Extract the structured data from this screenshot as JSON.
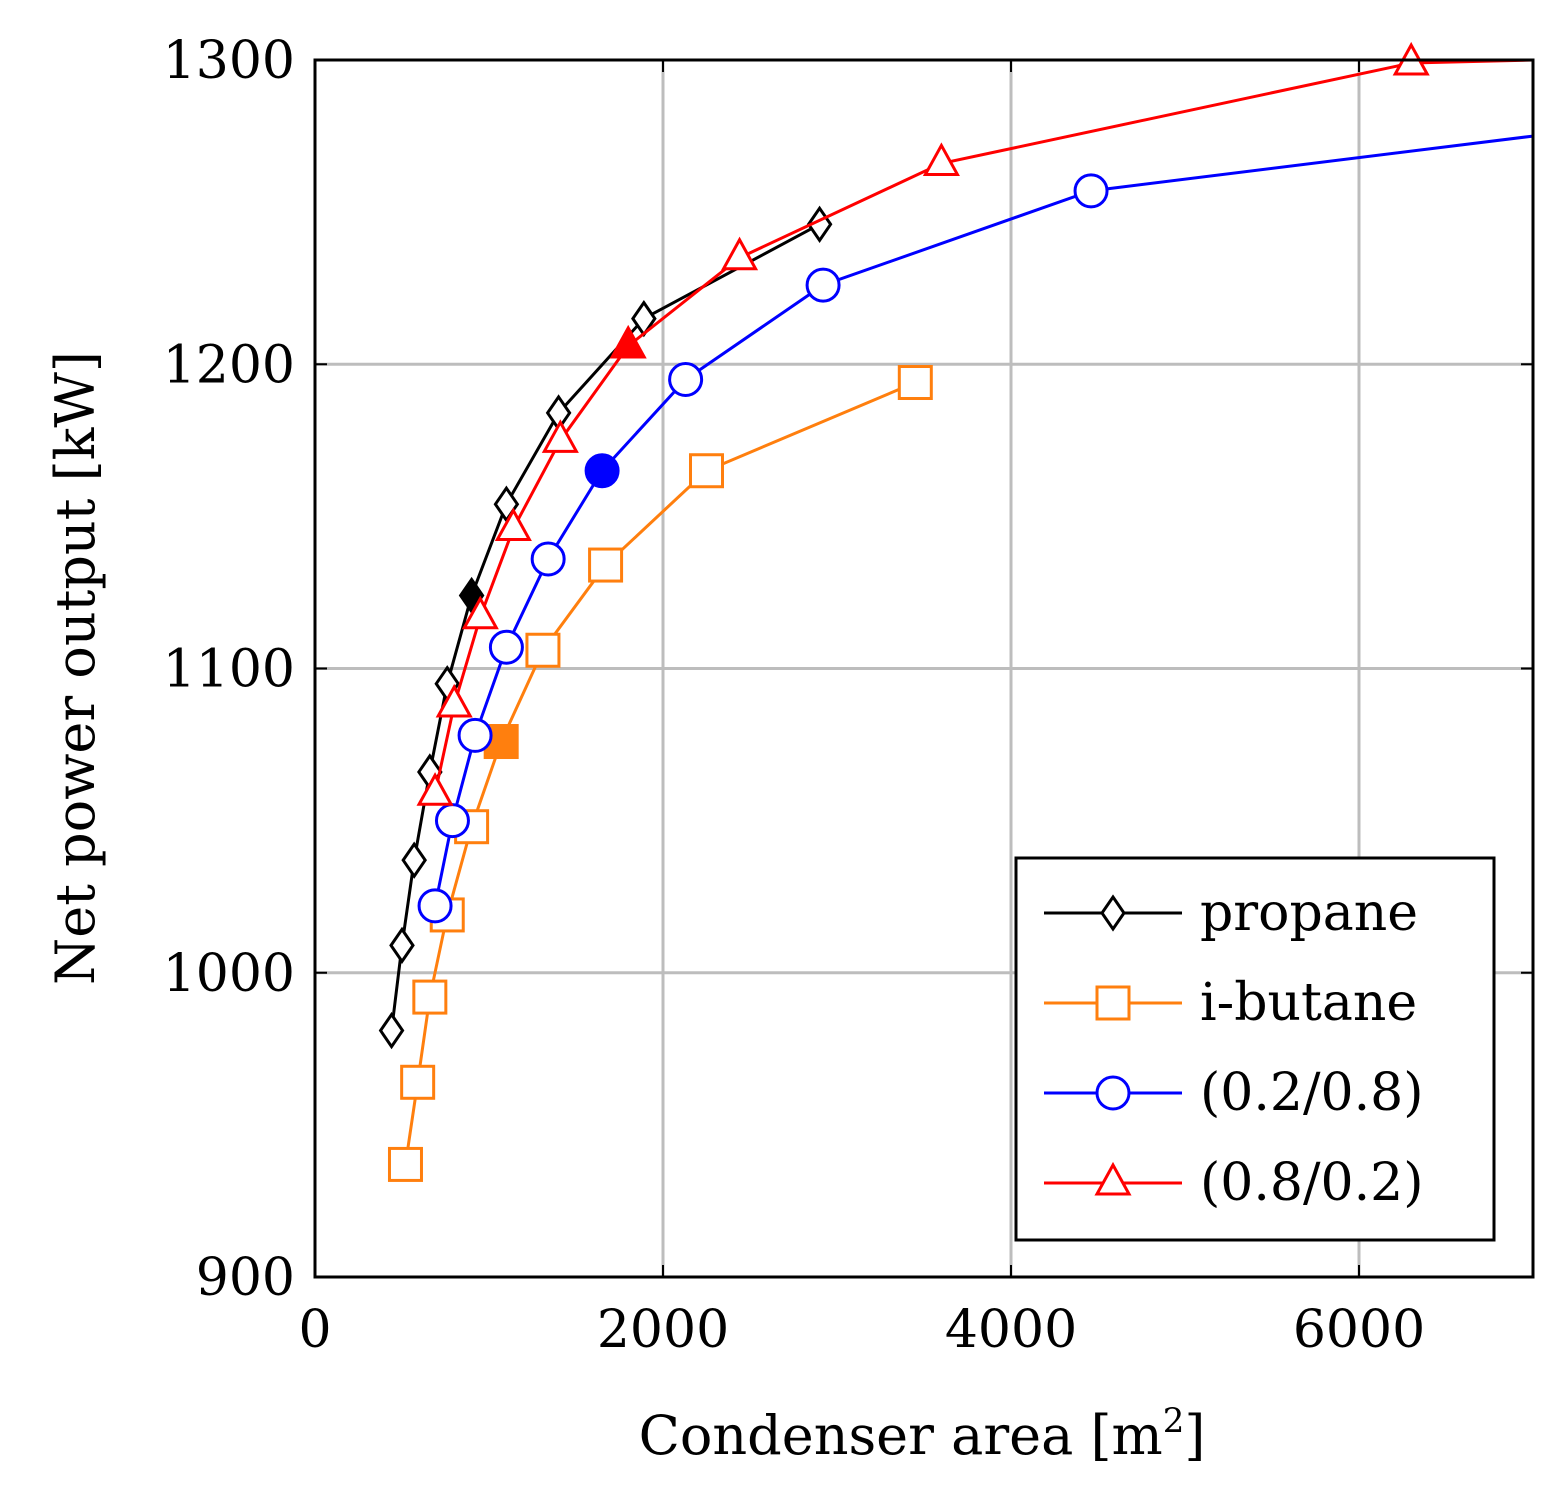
{
  "chart_data": {
    "type": "line",
    "xlabel": "Condenser area [m",
    "xlabel_sup": "2",
    "xlabel_end": "]",
    "ylabel": "Net power output [kW]",
    "xlim": [
      0,
      7000
    ],
    "ylim": [
      900,
      1300
    ],
    "xticks": [
      0,
      2000,
      4000,
      6000
    ],
    "yticks": [
      900,
      1000,
      1100,
      1200,
      1300
    ],
    "grid": true,
    "legend_position": "bottom-right",
    "series": [
      {
        "name": "propane",
        "color": "#000000",
        "marker": "diamond",
        "x": [
          440,
          500,
          570,
          660,
          760,
          900,
          1100,
          1400,
          1890,
          2900
        ],
        "y": [
          981,
          1009,
          1037,
          1066,
          1095,
          1124,
          1154,
          1184,
          1215,
          1246
        ],
        "highlight_index": 5
      },
      {
        "name": "i-butane",
        "color": "#ff7f0e",
        "marker": "square",
        "x": [
          520,
          590,
          660,
          760,
          900,
          1070,
          1310,
          1670,
          2250,
          3450
        ],
        "y": [
          937,
          964,
          992,
          1019,
          1048,
          1076,
          1106,
          1134,
          1165,
          1194
        ],
        "highlight_index": 5
      },
      {
        "name": "(0.2/0.8)",
        "color": "#0000ff",
        "marker": "circle",
        "x": [
          690,
          790,
          920,
          1100,
          1340,
          1650,
          2130,
          2920,
          4460,
          7000
        ],
        "y": [
          1022,
          1050,
          1078,
          1107,
          1136,
          1165,
          1195,
          1226,
          1257,
          1275
        ],
        "highlight_index": 5
      },
      {
        "name": "(0.8/0.2)",
        "color": "#ff0000",
        "marker": "triangle",
        "x": [
          690,
          800,
          950,
          1140,
          1410,
          1800,
          2440,
          3600,
          6300,
          7000
        ],
        "y": [
          1059,
          1088,
          1117,
          1146,
          1175,
          1206,
          1235,
          1266,
          1299,
          1300
        ],
        "highlight_index": 5
      }
    ]
  }
}
